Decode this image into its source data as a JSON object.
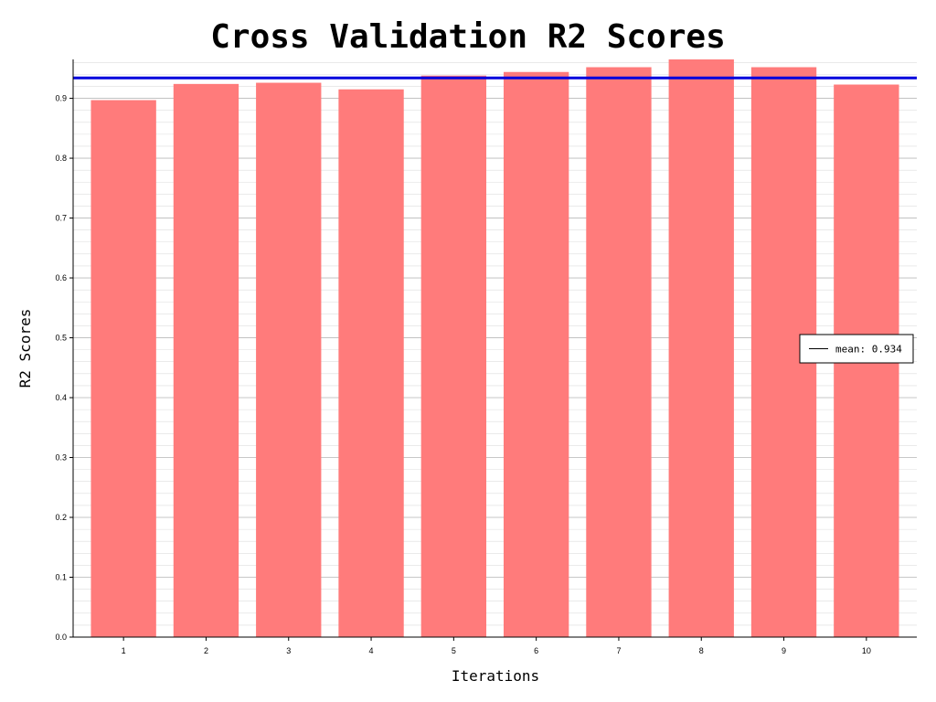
{
  "chart_data": {
    "type": "bar",
    "title": "Cross Validation R2 Scores",
    "xlabel": "Iterations",
    "ylabel": "R2 Scores",
    "categories": [
      "1",
      "2",
      "3",
      "4",
      "5",
      "6",
      "7",
      "8",
      "9",
      "10"
    ],
    "values": [
      0.897,
      0.924,
      0.926,
      0.915,
      0.938,
      0.944,
      0.952,
      0.965,
      0.952,
      0.923
    ],
    "ylim": [
      0,
      0.965
    ],
    "yticks": [
      "0.0",
      "0.1",
      "0.2",
      "0.3",
      "0.4",
      "0.5",
      "0.6",
      "0.7",
      "0.8",
      "0.9"
    ],
    "grid": true,
    "bar_color": "#ff7b7b",
    "mean": {
      "value": 0.934,
      "label": "mean: 0.934",
      "color": "#0000dd"
    },
    "legend": {
      "placement": "right",
      "entries": [
        "mean: 0.934"
      ]
    }
  }
}
